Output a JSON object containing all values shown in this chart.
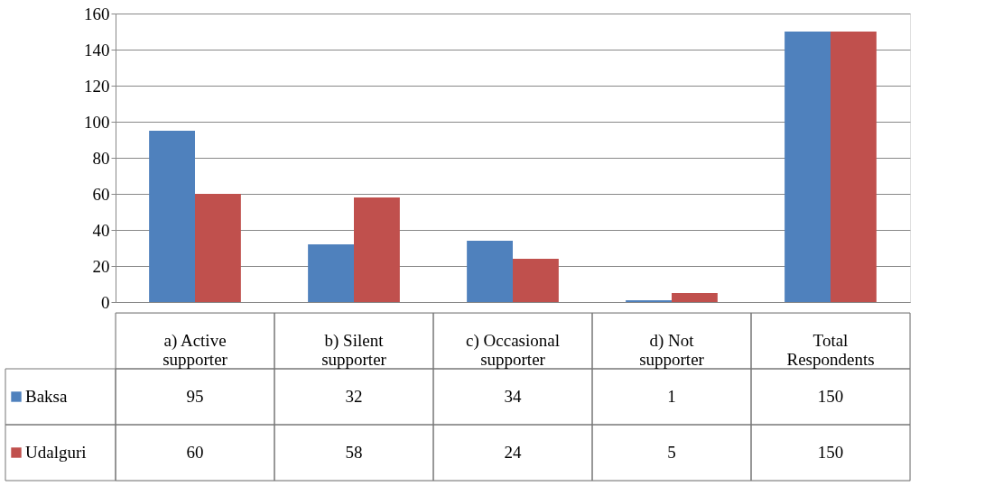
{
  "chart_data": {
    "type": "bar",
    "categories": [
      "a) Active\nsupporter",
      "b) Silent\nsupporter",
      "c) Occasional\nsupporter",
      "d) Not\nsupporter",
      "Total\nRespondents"
    ],
    "series": [
      {
        "name": "Baksa",
        "color": "#4f81bd",
        "values": [
          95,
          32,
          34,
          1,
          150
        ]
      },
      {
        "name": "Udalguri",
        "color": "#c0504d",
        "values": [
          60,
          58,
          24,
          5,
          150
        ]
      }
    ],
    "ylim": [
      0,
      160
    ],
    "yticks": [
      0,
      20,
      40,
      60,
      80,
      100,
      120,
      140,
      160
    ],
    "grid": "y",
    "legend": "bottom",
    "data_labels": true
  }
}
